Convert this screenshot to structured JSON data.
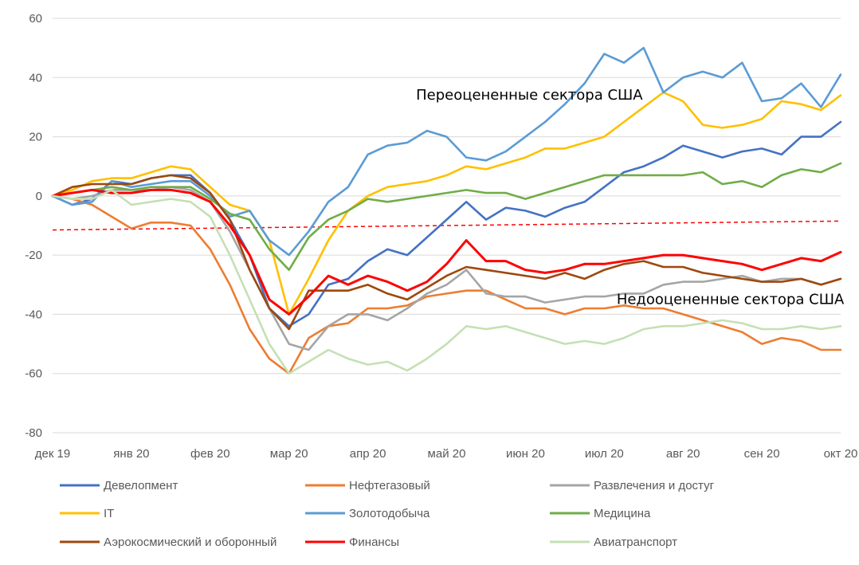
{
  "chart_data": {
    "type": "line",
    "title": "",
    "xlabel": "",
    "ylabel": "",
    "ylim": [
      -80,
      60
    ],
    "yticks": [
      60,
      40,
      20,
      0,
      -20,
      -40,
      -60,
      -80
    ],
    "xlim": [
      0,
      10
    ],
    "x_ticks": [
      {
        "x": 0,
        "label": "дек 19"
      },
      {
        "x": 1,
        "label": "янв 20"
      },
      {
        "x": 2,
        "label": "фев 20"
      },
      {
        "x": 3,
        "label": "мар 20"
      },
      {
        "x": 4,
        "label": "апр 20"
      },
      {
        "x": 5,
        "label": "май 20"
      },
      {
        "x": 6,
        "label": "июн 20"
      },
      {
        "x": 7,
        "label": "июл 20"
      },
      {
        "x": 8,
        "label": "авг 20"
      },
      {
        "x": 9,
        "label": "сен 20"
      },
      {
        "x": 10,
        "label": "окт 20"
      }
    ],
    "grid": true,
    "legend_position": "bottom",
    "annotations": [
      {
        "text": "Переоцененные сектора США",
        "x": 6.05,
        "y": 32.5
      },
      {
        "text": "Недооцененные сектора США",
        "x": 8.6,
        "y": -36.5
      }
    ],
    "trendline": {
      "color": "#ff0000",
      "style": "dashed",
      "y_start": -11.5,
      "y_end": -8.5
    },
    "x": [
      0,
      0.25,
      0.5,
      0.75,
      1,
      1.25,
      1.5,
      1.75,
      2,
      2.25,
      2.5,
      2.75,
      3,
      3.25,
      3.5,
      3.75,
      4,
      4.25,
      4.5,
      4.75,
      5,
      5.25,
      5.5,
      5.75,
      6,
      6.25,
      6.5,
      6.75,
      7,
      7.25,
      7.5,
      7.75,
      8,
      8.25,
      8.5,
      8.75,
      9,
      9.25,
      9.5,
      9.75,
      10
    ],
    "series": [
      {
        "name": "Девелопмент",
        "color": "#4472c4",
        "values": [
          0,
          -3,
          -1,
          5,
          4,
          6,
          7,
          7,
          1,
          -8,
          -20,
          -38,
          -44,
          -40,
          -30,
          -28,
          -22,
          -18,
          -20,
          -14,
          -8,
          -2,
          -8,
          -4,
          -5,
          -7,
          -4,
          -2,
          3,
          8,
          10,
          13,
          17,
          15,
          13,
          15,
          16,
          14,
          20,
          20,
          25
        ]
      },
      {
        "name": "Нефтегазовый",
        "color": "#ed7d31",
        "values": [
          0,
          -1,
          -3,
          -7,
          -11,
          -9,
          -9,
          -10,
          -18,
          -30,
          -45,
          -55,
          -60,
          -48,
          -44,
          -43,
          -38,
          -38,
          -37,
          -34,
          -33,
          -32,
          -32,
          -35,
          -38,
          -38,
          -40,
          -38,
          -38,
          -37,
          -38,
          -38,
          -40,
          -42,
          -44,
          -46,
          -50,
          -48,
          -49,
          -52,
          -52
        ]
      },
      {
        "name": "Развлечения и достуг",
        "color": "#a5a5a5",
        "values": [
          0,
          -1,
          0,
          2,
          2,
          2,
          3,
          2,
          -2,
          -12,
          -25,
          -38,
          -50,
          -52,
          -44,
          -40,
          -40,
          -42,
          -38,
          -33,
          -30,
          -25,
          -33,
          -34,
          -34,
          -36,
          -35,
          -34,
          -34,
          -33,
          -33,
          -30,
          -29,
          -29,
          -28,
          -27,
          -29,
          -28,
          -28,
          -30,
          -28
        ]
      },
      {
        "name": "IT",
        "color": "#ffc000",
        "values": [
          0,
          2,
          5,
          6,
          6,
          8,
          10,
          9,
          3,
          -3,
          -5,
          -15,
          -40,
          -28,
          -15,
          -5,
          0,
          3,
          4,
          5,
          7,
          10,
          9,
          11,
          13,
          16,
          16,
          18,
          20,
          25,
          30,
          35,
          32,
          24,
          23,
          24,
          26,
          32,
          31,
          29,
          34
        ]
      },
      {
        "name": "Золотодобыча",
        "color": "#5b9bd5",
        "values": [
          0,
          -3,
          -2,
          5,
          3,
          4,
          5,
          5,
          0,
          -7,
          -5,
          -15,
          -20,
          -12,
          -2,
          3,
          14,
          17,
          18,
          22,
          20,
          13,
          12,
          15,
          20,
          25,
          31,
          38,
          48,
          45,
          50,
          35,
          40,
          42,
          40,
          45,
          32,
          33,
          38,
          30,
          41
        ]
      },
      {
        "name": "Медицина",
        "color": "#70ad47",
        "values": [
          0,
          1,
          2,
          3,
          2,
          3,
          3,
          3,
          -1,
          -6,
          -8,
          -18,
          -25,
          -14,
          -8,
          -5,
          -1,
          -2,
          -1,
          0,
          1,
          2,
          1,
          1,
          -1,
          1,
          3,
          5,
          7,
          7,
          7,
          7,
          7,
          8,
          4,
          5,
          3,
          7,
          9,
          8,
          11
        ]
      },
      {
        "name": "Аэрокосмический и оборонный",
        "color": "#9e480e",
        "values": [
          0,
          3,
          4,
          4,
          4,
          6,
          7,
          6,
          1,
          -8,
          -25,
          -38,
          -45,
          -32,
          -32,
          -32,
          -30,
          -33,
          -35,
          -31,
          -27,
          -24,
          -25,
          -26,
          -27,
          -28,
          -26,
          -28,
          -25,
          -23,
          -22,
          -24,
          -24,
          -26,
          -27,
          -28,
          -29,
          -29,
          -28,
          -30,
          -28
        ]
      },
      {
        "name": "Финансы",
        "color": "#ff0000",
        "values": [
          0,
          1,
          2,
          1,
          1,
          2,
          2,
          1,
          -2,
          -10,
          -20,
          -35,
          -40,
          -34,
          -27,
          -30,
          -27,
          -29,
          -32,
          -29,
          -23,
          -15,
          -22,
          -22,
          -25,
          -26,
          -25,
          -23,
          -23,
          -22,
          -21,
          -20,
          -20,
          -21,
          -22,
          -23,
          -25,
          -23,
          -21,
          -22,
          -19
        ]
      },
      {
        "name": "Авиатранспорт",
        "color": "#c5e0b4",
        "values": [
          0,
          -1,
          -1,
          2,
          -3,
          -2,
          -1,
          -2,
          -7,
          -20,
          -35,
          -50,
          -60,
          -56,
          -52,
          -55,
          -57,
          -56,
          -59,
          -55,
          -50,
          -44,
          -45,
          -44,
          -46,
          -48,
          -50,
          -49,
          -50,
          -48,
          -45,
          -44,
          -44,
          -43,
          -42,
          -43,
          -45,
          -45,
          -44,
          -45,
          -44
        ]
      }
    ]
  }
}
